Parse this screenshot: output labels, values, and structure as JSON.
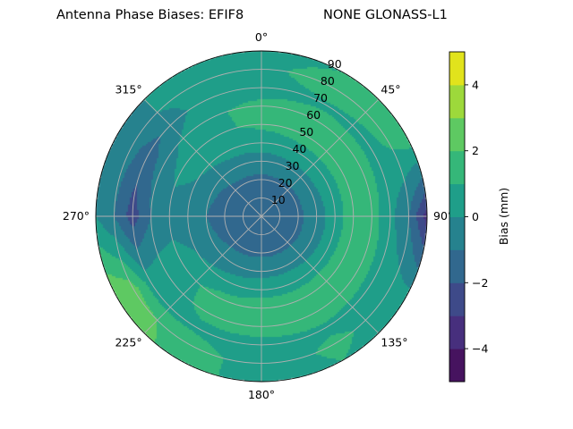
{
  "chart_data": {
    "type": "heatmap",
    "subtype": "polar-contour",
    "title_left": "Antenna Phase Biases: EFIF8",
    "title_right": "NONE GLONASS-L1",
    "theta_direction": "clockwise",
    "theta_zero": "top",
    "theta_tick_labels": [
      "0°",
      "45°",
      "90°",
      "135°",
      "180°",
      "225°",
      "270°",
      "315°"
    ],
    "r_tick_labels": [
      "10",
      "20",
      "30",
      "40",
      "50",
      "60",
      "70",
      "80",
      "90"
    ],
    "r_range": [
      0,
      90
    ],
    "grid": true,
    "azimuth_deg": [
      0,
      30,
      60,
      90,
      120,
      150,
      180,
      210,
      240,
      270,
      300,
      330
    ],
    "zenith_deg": [
      0,
      10,
      20,
      30,
      40,
      50,
      60,
      70,
      80,
      90
    ],
    "values": [
      [
        -1.5,
        -1.5,
        -1.5,
        -1.5,
        -1.5,
        -1.5,
        -1.5,
        -1.5,
        -1.5,
        -1.5,
        -1.5,
        -1.5
      ],
      [
        -1.5,
        -1.5,
        -1.5,
        -1.5,
        -1.5,
        -1.5,
        -1.5,
        -1.5,
        -1.5,
        -1.5,
        -1.5,
        -1.5
      ],
      [
        -1.2,
        -1.2,
        -1.2,
        -1.2,
        -1.2,
        -1.2,
        -1.2,
        -1.2,
        -1.2,
        -1.3,
        -1.3,
        -1.2
      ],
      [
        -0.5,
        -0.3,
        -0.3,
        -0.5,
        -0.5,
        -0.3,
        -0.3,
        -0.5,
        -0.8,
        -1.0,
        -0.8,
        -0.5
      ],
      [
        0.5,
        0.6,
        0.6,
        0.5,
        0.6,
        0.6,
        0.6,
        0.4,
        0.0,
        -0.5,
        0.0,
        0.4
      ],
      [
        1.2,
        1.5,
        1.5,
        1.6,
        1.6,
        1.6,
        1.5,
        1.3,
        0.5,
        -0.5,
        0.3,
        0.8
      ],
      [
        1.3,
        1.4,
        1.5,
        1.5,
        1.5,
        1.6,
        1.5,
        1.2,
        0.5,
        -1.0,
        -0.5,
        0.8
      ],
      [
        0.5,
        0.8,
        0.6,
        0.3,
        0.6,
        0.8,
        0.6,
        0.8,
        0.5,
        -2.5,
        -1.5,
        0.3
      ],
      [
        0.5,
        2.0,
        1.2,
        -1.0,
        0.5,
        1.2,
        0.5,
        1.5,
        2.5,
        -1.0,
        -0.5,
        0.5
      ],
      [
        0.0,
        1.0,
        2.0,
        -3.5,
        0.5,
        1.0,
        0.5,
        1.5,
        3.0,
        0.0,
        -0.5,
        0.5
      ]
    ],
    "colorbar": {
      "label": "Bias (mm)",
      "range": [
        -5,
        5
      ],
      "levels": [
        -5,
        -4,
        -3,
        -2,
        -1,
        0,
        1,
        2,
        3,
        4,
        5
      ],
      "tick_labels": [
        "−4",
        "−2",
        "0",
        "2",
        "4"
      ],
      "tick_values": [
        -4,
        -2,
        0,
        2,
        4
      ],
      "colors": [
        "#46135f",
        "#472f7d",
        "#3e4a89",
        "#31688e",
        "#26828e",
        "#1f9e89",
        "#35b779",
        "#5ec962",
        "#9dd93b",
        "#e1e31c"
      ],
      "colormap": "viridis"
    }
  }
}
